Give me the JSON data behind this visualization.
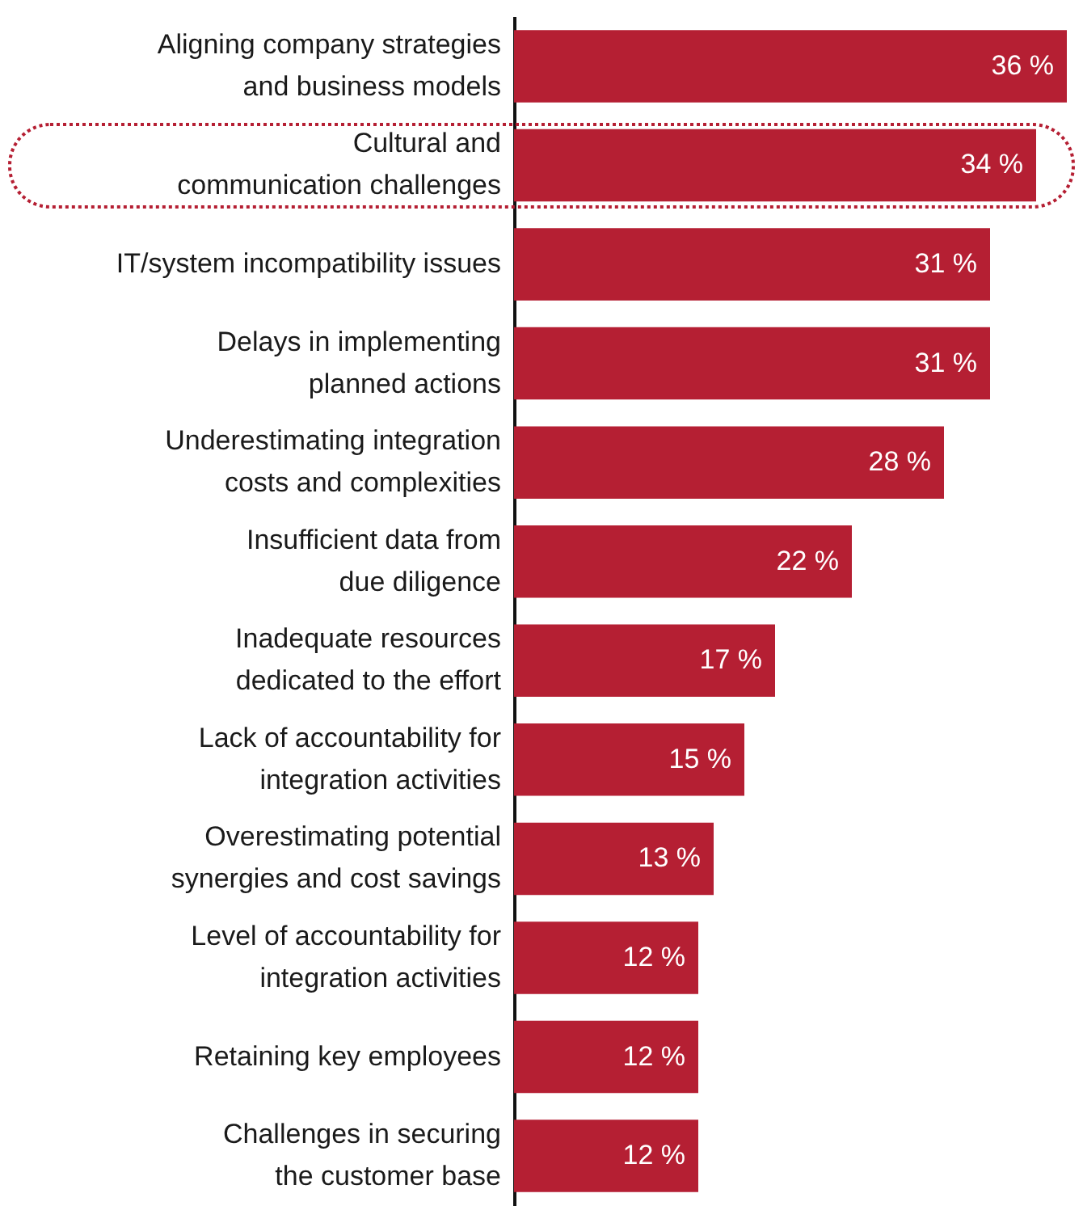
{
  "chart_data": {
    "type": "bar",
    "orientation": "horizontal",
    "color": "#b51f33",
    "categories": [
      "Aligning company strategies\nand business models",
      "Cultural and\ncommunication challenges",
      "IT/system incompatibility issues",
      "Delays in implementing\nplanned actions",
      "Underestimating integration\ncosts and complexities",
      "Insufficient data from\ndue diligence",
      "Inadequate resources\ndedicated to the effort",
      "Lack of accountability for\nintegration activities",
      "Overestimating potential\nsynergies and cost savings",
      "Level of accountability for\nintegration activities",
      "Retaining key employees",
      "Challenges in securing\nthe customer base"
    ],
    "values": [
      36,
      34,
      31,
      31,
      28,
      22,
      17,
      15,
      13,
      12,
      12,
      12
    ],
    "value_labels": [
      "36 %",
      "34 %",
      "31 %",
      "31 %",
      "28 %",
      "22 %",
      "17 %",
      "15 %",
      "13 %",
      "12 %",
      "12 %",
      "12 %"
    ]
  }
}
